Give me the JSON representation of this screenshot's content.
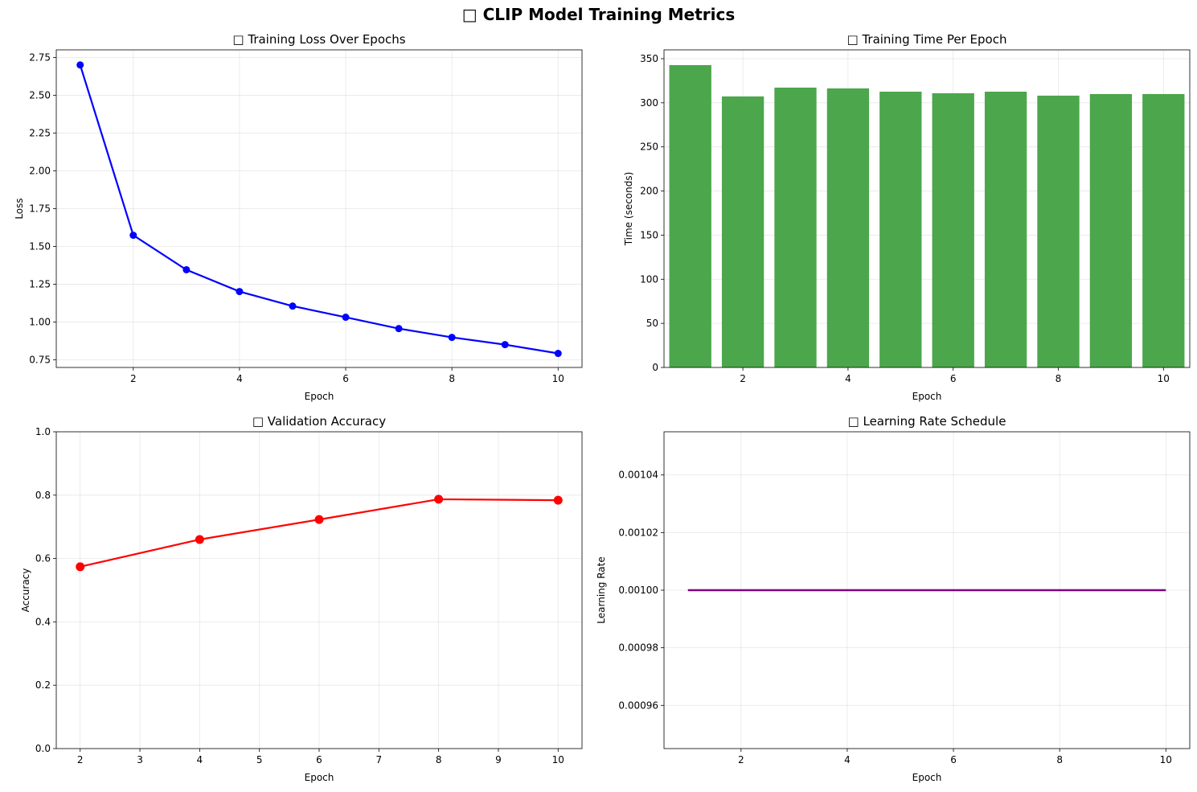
{
  "figure_title": "□ CLIP Model Training Metrics",
  "chart_data": [
    {
      "type": "line",
      "title": "□ Training Loss Over Epochs",
      "xlabel": "Epoch",
      "ylabel": "Loss",
      "x": [
        1,
        2,
        3,
        4,
        5,
        6,
        7,
        8,
        9,
        10
      ],
      "values": [
        2.7,
        1.574,
        1.346,
        1.202,
        1.106,
        1.032,
        0.957,
        0.899,
        0.851,
        0.793
      ],
      "xlim": [
        0.55,
        10.45
      ],
      "ylim": [
        0.7,
        2.8
      ],
      "xticks": [
        2,
        4,
        6,
        8,
        10
      ],
      "xtick_labels": [
        "2",
        "4",
        "6",
        "8",
        "10"
      ],
      "yticks": [
        0.75,
        1.0,
        1.25,
        1.5,
        1.75,
        2.0,
        2.25,
        2.5,
        2.75
      ],
      "ytick_labels": [
        "0.75",
        "1.00",
        "1.25",
        "1.50",
        "1.75",
        "2.00",
        "2.25",
        "2.50",
        "2.75"
      ],
      "color": "#0000ff",
      "marker": "circle",
      "grid": true
    },
    {
      "type": "bar",
      "title": "□ Training Time Per Epoch",
      "xlabel": "Epoch",
      "ylabel": "Time (seconds)",
      "x": [
        1,
        2,
        3,
        4,
        5,
        6,
        7,
        8,
        9,
        10
      ],
      "values": [
        342.7,
        307.2,
        317.2,
        316.3,
        312.6,
        310.8,
        312.6,
        308.1,
        309.9,
        309.9
      ],
      "xlim": [
        0.5,
        10.5
      ],
      "ylim": [
        0,
        360
      ],
      "xticks": [
        2,
        4,
        6,
        8,
        10
      ],
      "xtick_labels": [
        "2",
        "4",
        "6",
        "8",
        "10"
      ],
      "yticks": [
        0,
        50,
        100,
        150,
        200,
        250,
        300,
        350
      ],
      "ytick_labels": [
        "0",
        "50",
        "100",
        "150",
        "200",
        "250",
        "300",
        "350"
      ],
      "color": "#4ca64c",
      "grid": true
    },
    {
      "type": "line",
      "title": "□ Validation Accuracy",
      "xlabel": "Epoch",
      "ylabel": "Accuracy",
      "x": [
        2,
        4,
        6,
        8,
        10
      ],
      "values": [
        0.574,
        0.66,
        0.723,
        0.787,
        0.784
      ],
      "xlim": [
        1.6,
        10.4
      ],
      "ylim": [
        0,
        1
      ],
      "xticks": [
        2,
        3,
        4,
        5,
        6,
        7,
        8,
        9,
        10
      ],
      "xtick_labels": [
        "2",
        "3",
        "4",
        "5",
        "6",
        "7",
        "8",
        "9",
        "10"
      ],
      "yticks": [
        0,
        0.2,
        0.4,
        0.6,
        0.8,
        1.0
      ],
      "ytick_labels": [
        "0.0",
        "0.2",
        "0.4",
        "0.6",
        "0.8",
        "1.0"
      ],
      "color": "#ff0000",
      "marker": "circle",
      "grid": true
    },
    {
      "type": "line",
      "title": "□ Learning Rate Schedule",
      "xlabel": "Epoch",
      "ylabel": "Learning Rate",
      "x": [
        1,
        2,
        3,
        4,
        5,
        6,
        7,
        8,
        9,
        10
      ],
      "values": [
        0.001,
        0.001,
        0.001,
        0.001,
        0.001,
        0.001,
        0.001,
        0.001,
        0.001,
        0.001
      ],
      "xlim": [
        0.55,
        10.45
      ],
      "ylim": [
        0.000945,
        0.001055
      ],
      "xticks": [
        2,
        4,
        6,
        8,
        10
      ],
      "xtick_labels": [
        "2",
        "4",
        "6",
        "8",
        "10"
      ],
      "yticks": [
        0.00096,
        0.00098,
        0.001,
        0.00102,
        0.00104
      ],
      "ytick_labels": [
        "0.00096",
        "0.00098",
        "0.00100",
        "0.00102",
        "0.00104"
      ],
      "color": "#800080",
      "grid": true
    }
  ]
}
